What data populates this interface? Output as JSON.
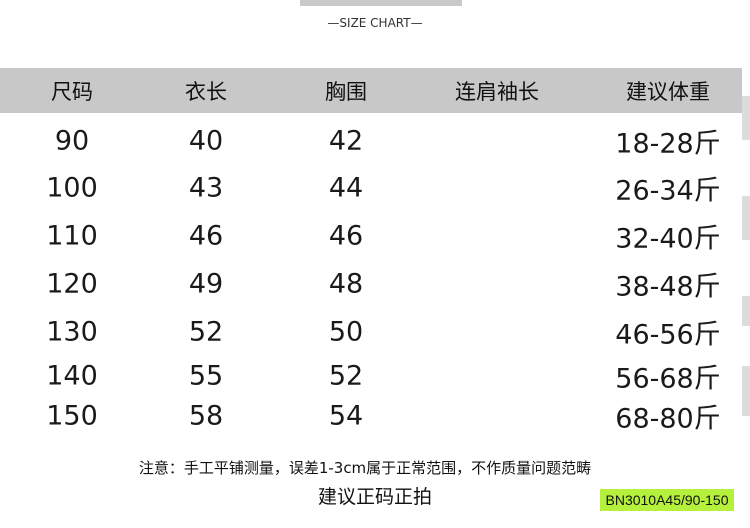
{
  "subtitle": "—SIZE CHART—",
  "table": {
    "headers": [
      "尺码",
      "衣长",
      "胸围",
      "连肩袖长",
      "建议体重"
    ],
    "rows": [
      [
        "90",
        "40",
        "42",
        "",
        "18-28斤"
      ],
      [
        "100",
        "43",
        "44",
        "",
        "26-34斤"
      ],
      [
        "110",
        "46",
        "46",
        "",
        "32-40斤"
      ],
      [
        "120",
        "49",
        "48",
        "",
        "38-48斤"
      ],
      [
        "130",
        "52",
        "50",
        "",
        "46-56斤"
      ],
      [
        "140",
        "55",
        "52",
        "",
        "56-68斤"
      ],
      [
        "150",
        "58",
        "54",
        "",
        "68-80斤"
      ]
    ]
  },
  "note": "注意：手工平铺测量，误差1-3cm属于正常范围，不作质量问题范畴",
  "recommendation": "建议正码正拍",
  "product_code": "BN3010A45/90-150",
  "colors": {
    "header_bg": "#c8c8c8",
    "code_bg": "#b5f03c"
  }
}
